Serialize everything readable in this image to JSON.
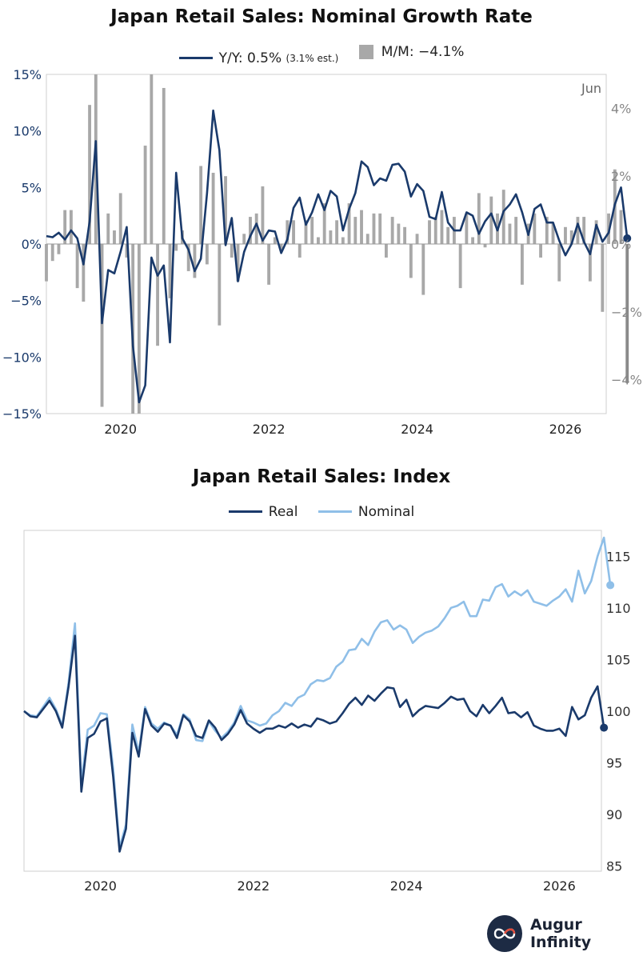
{
  "chart_data": [
    {
      "type": "bar+line",
      "title": "Japan Retail Sales: Nominal Growth Rate",
      "annotation": "Jun",
      "legend": [
        {
          "label": "Y/Y: 0.5%",
          "note": "(3.1% est.)",
          "color": "#1a3a6b",
          "kind": "line"
        },
        {
          "label": "M/M: −4.1%",
          "color": "#a8a8a8",
          "kind": "bar"
        }
      ],
      "left_axis": {
        "ticks": [
          "15%",
          "10%",
          "5%",
          "0%",
          "−5%",
          "−10%",
          "−15%"
        ],
        "range": [
          -15,
          15
        ],
        "color": "#1a3a6b"
      },
      "right_axis": {
        "ticks": [
          "4%",
          "2%",
          "0%",
          "−2%",
          "−4%"
        ],
        "range": [
          -5,
          5
        ],
        "color": "#888888"
      },
      "x_ticks": [
        {
          "label": "2020",
          "t": 2020.0
        },
        {
          "label": "2022",
          "t": 2022.0
        },
        {
          "label": "2024",
          "t": 2024.0
        },
        {
          "label": "2026",
          "t": 2026.0
        }
      ],
      "x_range": [
        2019.0,
        2026.55
      ],
      "t_start": 2019.0,
      "t_step": 0.08333,
      "series": [
        {
          "name": "Y/Y",
          "color": "#1a3a6b",
          "values": [
            0.7,
            0.6,
            1.0,
            0.4,
            1.2,
            0.5,
            -1.8,
            2.0,
            9.1,
            -7.0,
            -2.3,
            -2.6,
            -0.7,
            1.5,
            -9.0,
            -14.0,
            -12.5,
            -1.2,
            -2.8,
            -1.9,
            -8.7,
            6.3,
            0.5,
            -0.5,
            -2.4,
            -1.3,
            4.5,
            11.8,
            8.3,
            -0.1,
            2.3,
            -3.3,
            -0.7,
            0.7,
            1.8,
            0.3,
            1.2,
            1.1,
            -0.8,
            0.4,
            3.2,
            4.1,
            1.7,
            2.8,
            4.4,
            3.0,
            4.7,
            4.2,
            1.2,
            3.1,
            4.5,
            7.3,
            6.8,
            5.2,
            5.8,
            5.6,
            7.0,
            7.1,
            6.4,
            4.2,
            5.3,
            4.7,
            2.4,
            2.2,
            4.6,
            1.9,
            1.2,
            1.2,
            2.8,
            2.5,
            0.9,
            2.0,
            2.7,
            1.2,
            2.9,
            3.5,
            4.4,
            2.8,
            0.8,
            3.1,
            3.5,
            1.9,
            1.9,
            0.3,
            -1.0,
            0.0,
            1.8,
            0.2,
            -0.9,
            1.7,
            0.2,
            1.0,
            3.5,
            5.0,
            0.5
          ]
        },
        {
          "name": "M/M",
          "color": "#a8a8a8",
          "values": [
            -1.1,
            -0.5,
            -0.3,
            1.0,
            1.0,
            -1.3,
            -1.7,
            4.1,
            5.0,
            -4.8,
            0.9,
            0.4,
            1.5,
            -0.4,
            -5.0,
            -5.0,
            2.9,
            5.0,
            -3.0,
            4.6,
            -1.6,
            -0.2,
            0.4,
            -0.8,
            -1.0,
            2.3,
            -0.6,
            2.1,
            -2.4,
            2.0,
            -0.4,
            -1.1,
            0.3,
            0.8,
            0.9,
            1.7,
            -1.2,
            0.2,
            -0.2,
            0.7,
            0.7,
            -0.4,
            0.7,
            0.8,
            0.2,
            1.2,
            0.4,
            0.7,
            0.2,
            1.2,
            0.8,
            1.0,
            0.3,
            0.9,
            0.9,
            -0.4,
            0.8,
            0.6,
            0.5,
            -1.0,
            0.3,
            -1.5,
            0.7,
            0.8,
            1.0,
            0.5,
            0.8,
            -1.3,
            0.9,
            0.2,
            1.5,
            -0.1,
            1.4,
            0.9,
            1.6,
            0.6,
            0.8,
            -1.2,
            0.6,
            0.9,
            -0.4,
            0.8,
            0.6,
            -1.1,
            0.5,
            0.4,
            0.8,
            0.8,
            -1.1,
            0.7,
            -2.0,
            0.9,
            2.2,
            1.0,
            -4.1
          ]
        }
      ]
    },
    {
      "type": "line",
      "title": "Japan Retail Sales: Index",
      "legend": [
        {
          "label": "Real",
          "color": "#1a3a6b"
        },
        {
          "label": "Nominal",
          "color": "#8fbfe8"
        }
      ],
      "right_axis": {
        "ticks": [
          "115",
          "110",
          "105",
          "100",
          "95",
          "90",
          "85"
        ],
        "range": [
          84.5,
          117.5
        ]
      },
      "x_ticks": [
        {
          "label": "2020",
          "t": 2020.0
        },
        {
          "label": "2022",
          "t": 2022.0
        },
        {
          "label": "2024",
          "t": 2024.0
        },
        {
          "label": "2026",
          "t": 2026.0
        }
      ],
      "x_range": [
        2019.0,
        2026.55
      ],
      "t_start": 2019.0,
      "t_step": 0.08333,
      "series": [
        {
          "name": "Nominal",
          "color": "#8fbfe8",
          "values": [
            100.0,
            99.6,
            99.5,
            100.4,
            101.3,
            100.2,
            98.6,
            102.8,
            108.5,
            93.0,
            98.2,
            98.6,
            99.8,
            99.7,
            94.4,
            86.8,
            89.0,
            98.7,
            96.0,
            100.4,
            98.8,
            98.3,
            98.9,
            98.6,
            97.7,
            99.7,
            99.2,
            97.2,
            97.1,
            99.0,
            98.1,
            97.4,
            98.0,
            98.9,
            100.5,
            99.1,
            98.9,
            98.6,
            98.8,
            99.6,
            100.0,
            100.8,
            100.5,
            101.3,
            101.6,
            102.6,
            103.0,
            102.9,
            103.2,
            104.3,
            104.8,
            105.9,
            106.0,
            107.0,
            106.4,
            107.7,
            108.6,
            108.8,
            107.9,
            108.3,
            107.9,
            106.6,
            107.2,
            107.6,
            107.8,
            108.2,
            109.0,
            110.0,
            110.2,
            110.6,
            109.2,
            109.2,
            110.8,
            110.7,
            112.0,
            112.3,
            111.1,
            111.6,
            111.2,
            111.7,
            110.6,
            110.4,
            110.2,
            110.7,
            111.1,
            111.8,
            110.6,
            113.6,
            111.4,
            112.6,
            115.0,
            116.8,
            112.2
          ]
        },
        {
          "name": "Real",
          "color": "#1a3a6b",
          "values": [
            100.0,
            99.5,
            99.4,
            100.2,
            101.0,
            100.0,
            98.4,
            102.4,
            107.3,
            92.2,
            97.4,
            97.8,
            99.0,
            99.3,
            93.6,
            86.4,
            88.6,
            97.9,
            95.6,
            100.2,
            98.6,
            98.0,
            98.8,
            98.6,
            97.4,
            99.6,
            99.0,
            97.6,
            97.4,
            99.1,
            98.4,
            97.2,
            97.8,
            98.7,
            100.1,
            98.8,
            98.3,
            97.9,
            98.3,
            98.3,
            98.6,
            98.4,
            98.8,
            98.4,
            98.7,
            98.5,
            99.3,
            99.1,
            98.8,
            99.0,
            99.8,
            100.7,
            101.3,
            100.6,
            101.5,
            101.0,
            101.7,
            102.3,
            102.2,
            100.4,
            101.1,
            99.5,
            100.1,
            100.5,
            100.4,
            100.3,
            100.8,
            101.4,
            101.1,
            101.2,
            100.0,
            99.5,
            100.6,
            99.8,
            100.5,
            101.3,
            99.8,
            99.9,
            99.4,
            99.9,
            98.6,
            98.3,
            98.1,
            98.1,
            98.3,
            97.6,
            100.4,
            99.2,
            99.6,
            101.3,
            102.4,
            98.4
          ]
        }
      ]
    }
  ],
  "brand": {
    "name": "Augur Infinity"
  }
}
